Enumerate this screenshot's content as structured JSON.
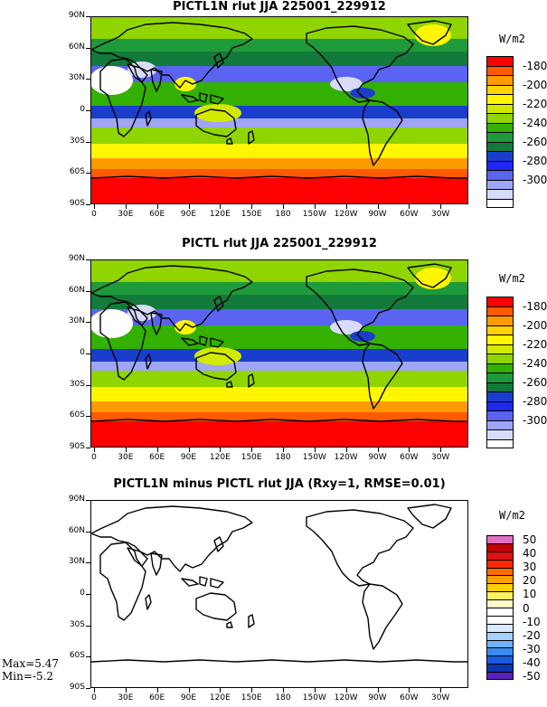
{
  "panels": [
    {
      "title": "PICTL1N rlut JJA 225001_229912",
      "units": "W/m2",
      "field": "rlut-full"
    },
    {
      "title": "PICTL rlut JJA 225001_229912",
      "units": "W/m2",
      "field": "rlut-full"
    },
    {
      "title": "PICTL1N minus PICTL rlut JJA (Rxy=1, RMSE=0.01)",
      "units": "W/m2",
      "field": "difference"
    }
  ],
  "lat_labels": [
    "90N",
    "60N",
    "30N",
    "0",
    "30S",
    "60S",
    "90S"
  ],
  "lon_labels": [
    "0",
    "30E",
    "60E",
    "90E",
    "120E",
    "150E",
    "180",
    "150W",
    "120W",
    "90W",
    "60W",
    "30W"
  ],
  "colorbar_full": {
    "labels": [
      "-180",
      "-200",
      "-220",
      "-240",
      "-260",
      "-280",
      "-300"
    ],
    "colors": [
      "#ff0000",
      "#ff5a00",
      "#ff9a00",
      "#ffd200",
      "#fff600",
      "#d2ea00",
      "#90d400",
      "#33b000",
      "#1f9a3a",
      "#127a3a",
      "#1a3ecc",
      "#1e28f0",
      "#5a64f0",
      "#9ea6f5",
      "#d8dcfa",
      "#ffffff"
    ]
  },
  "colorbar_diff": {
    "labels": [
      "50",
      "40",
      "30",
      "20",
      "10",
      "0",
      "-10",
      "-20",
      "-30",
      "-40",
      "-50"
    ],
    "colors": [
      "#e070c0",
      "#c00000",
      "#e01010",
      "#ff2800",
      "#ff6a00",
      "#ffa000",
      "#ffd000",
      "#fff060",
      "#fffac8",
      "#ffffff",
      "#ffffff",
      "#d8eaff",
      "#a8d0ff",
      "#70b0ff",
      "#3a8cf0",
      "#1a5ce0",
      "#0a34b0",
      "#5a20c0"
    ]
  },
  "stats": {
    "max": "Max=5.47",
    "min": "Min=-5.2"
  }
}
